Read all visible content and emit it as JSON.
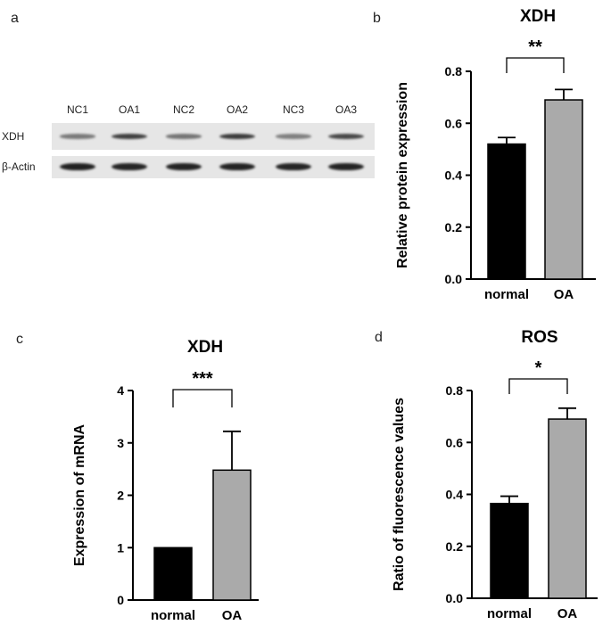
{
  "panels": {
    "a": "a",
    "b": "b",
    "c": "c",
    "d": "d"
  },
  "blot": {
    "lanes": [
      "NC1",
      "OA1",
      "NC2",
      "OA2",
      "NC3",
      "OA3"
    ],
    "rows": [
      "XDH",
      "β-Actin"
    ],
    "band_intensity": {
      "XDH": [
        0.45,
        0.78,
        0.48,
        0.8,
        0.42,
        0.74
      ],
      "β-Actin": [
        0.95,
        0.93,
        0.94,
        0.94,
        0.93,
        0.94
      ]
    }
  },
  "colors": {
    "bar1": "#000000",
    "bar2": "#aaaaaa",
    "axis": "#000000",
    "band": "#1a1a1a"
  },
  "chart_data": [
    {
      "id": "b",
      "type": "bar",
      "title": "XDH",
      "ylabel": "Relative protein expression",
      "categories": [
        "normal",
        "OA"
      ],
      "values": [
        0.52,
        0.69
      ],
      "errors": [
        0.025,
        0.04
      ],
      "ylim": [
        0,
        0.8
      ],
      "yticks": [
        0.0,
        0.2,
        0.4,
        0.6,
        0.8
      ],
      "tick_labels": [
        "0.0",
        "0.2",
        "0.4",
        "0.6",
        "0.8"
      ],
      "significance": "**"
    },
    {
      "id": "c",
      "type": "bar",
      "title": "XDH",
      "ylabel": "Expression of mRNA",
      "categories": [
        "normal",
        "OA"
      ],
      "values": [
        1.0,
        2.48
      ],
      "errors": [
        0,
        0.74
      ],
      "ylim": [
        0,
        4
      ],
      "yticks": [
        0,
        1,
        2,
        3,
        4
      ],
      "tick_labels": [
        "0",
        "1",
        "2",
        "3",
        "4"
      ],
      "significance": "***"
    },
    {
      "id": "d",
      "type": "bar",
      "title": "ROS",
      "ylabel": "Ratio of fluorescence values",
      "categories": [
        "normal",
        "OA"
      ],
      "values": [
        0.365,
        0.69
      ],
      "errors": [
        0.028,
        0.042
      ],
      "ylim": [
        0,
        0.8
      ],
      "yticks": [
        0.0,
        0.2,
        0.4,
        0.6,
        0.8
      ],
      "tick_labels": [
        "0.0",
        "0.2",
        "0.4",
        "0.6",
        "0.8"
      ],
      "significance": "*"
    }
  ]
}
